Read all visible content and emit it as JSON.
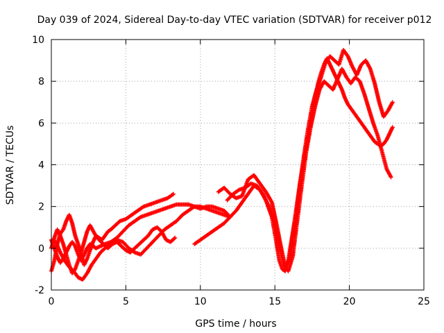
{
  "chart_data": {
    "type": "scatter",
    "title": "Day 039 of 2024, Sidereal Day-to-day VTEC variation (SDTVAR) for receiver p012",
    "xlabel": "GPS time / hours",
    "ylabel": "SDTVAR / TECUs",
    "xlim": [
      0,
      25
    ],
    "ylim": [
      -2,
      10
    ],
    "xticks": [
      0,
      5,
      10,
      15,
      20,
      25
    ],
    "yticks": [
      -2,
      0,
      2,
      4,
      6,
      8,
      10
    ],
    "grid": true,
    "marker": "+",
    "colors": {
      "series": "#ff0000",
      "grid": "#a0a0a0",
      "axis": "#000000"
    },
    "series": [
      {
        "x": [
          0.0,
          0.2,
          0.4,
          0.6,
          0.8,
          1.0,
          1.2,
          1.4,
          1.6,
          1.8,
          2.0,
          2.2,
          2.4,
          2.6,
          2.8,
          3.0,
          3.2,
          3.4,
          3.6,
          3.8,
          4.0,
          4.3,
          4.6,
          5.0,
          5.4,
          5.8,
          6.2,
          6.6,
          7.0,
          7.4,
          7.8,
          8.2
        ],
        "y": [
          -1.1,
          -0.6,
          0.2,
          0.7,
          0.9,
          1.3,
          1.6,
          1.2,
          0.6,
          0.2,
          -0.3,
          -0.8,
          -0.5,
          -0.1,
          0.3,
          0.6,
          0.5,
          0.4,
          0.6,
          0.8,
          0.9,
          1.1,
          1.3,
          1.4,
          1.6,
          1.8,
          2.0,
          2.1,
          2.2,
          2.3,
          2.4,
          2.6
        ]
      },
      {
        "x": [
          0.0,
          0.2,
          0.4,
          0.6,
          0.8,
          1.0,
          1.2,
          1.4,
          1.6,
          1.8,
          2.0,
          2.2,
          2.4,
          2.6,
          2.8,
          3.0,
          3.3,
          3.6,
          4.0,
          4.4,
          4.8,
          5.2,
          5.6,
          6.0,
          6.4,
          6.8,
          7.2,
          7.6,
          8.0,
          8.4,
          8.8,
          9.2,
          9.6,
          10.0,
          10.4,
          10.8,
          11.2,
          11.6,
          12.0
        ],
        "y": [
          0.4,
          0.0,
          -0.4,
          -0.7,
          -0.5,
          -0.2,
          0.1,
          0.3,
          0.1,
          -0.3,
          -0.6,
          -0.3,
          0.0,
          0.2,
          0.1,
          0.0,
          0.1,
          0.2,
          0.3,
          0.5,
          0.8,
          1.1,
          1.3,
          1.5,
          1.6,
          1.7,
          1.8,
          1.9,
          2.0,
          2.1,
          2.1,
          2.1,
          2.0,
          1.9,
          2.0,
          2.0,
          1.9,
          1.8,
          1.5
        ]
      },
      {
        "x": [
          0.0,
          0.2,
          0.4,
          0.6,
          0.8,
          1.0,
          1.2,
          1.4,
          1.6,
          1.8,
          2.0,
          2.2,
          2.4,
          2.6,
          2.9,
          3.2,
          3.5,
          3.8,
          4.1,
          4.4,
          4.7,
          5.0,
          5.3,
          5.6,
          5.9,
          6.2,
          6.5,
          6.8,
          7.1,
          7.4,
          7.7,
          8.0,
          8.3
        ],
        "y": [
          0.0,
          0.5,
          0.9,
          0.6,
          0.2,
          -0.3,
          -0.8,
          -1.2,
          -1.0,
          -0.6,
          -0.2,
          0.3,
          0.8,
          1.1,
          0.7,
          0.4,
          0.2,
          0.0,
          0.2,
          0.3,
          0.1,
          -0.1,
          -0.2,
          0.0,
          0.2,
          0.4,
          0.6,
          0.9,
          1.0,
          0.8,
          0.4,
          0.3,
          0.5
        ]
      },
      {
        "x": [
          0.3,
          0.6,
          0.9,
          1.2,
          1.5,
          1.8,
          2.1,
          2.4,
          2.7,
          3.0,
          3.3,
          3.6,
          4.0,
          4.4,
          4.8,
          5.2,
          5.6,
          6.0,
          6.4,
          6.8,
          7.2,
          7.6,
          8.0,
          8.4,
          8.8,
          9.2,
          9.6,
          10.0,
          10.4,
          10.8,
          11.2,
          11.6,
          12.0
        ],
        "y": [
          0.3,
          -0.2,
          -0.6,
          -0.9,
          -1.1,
          -1.4,
          -1.5,
          -1.2,
          -0.8,
          -0.5,
          -0.2,
          0.0,
          0.2,
          0.4,
          0.3,
          0.0,
          -0.2,
          -0.3,
          0.0,
          0.3,
          0.6,
          0.9,
          1.1,
          1.3,
          1.6,
          1.8,
          2.0,
          2.0,
          1.9,
          1.8,
          1.7,
          1.6,
          1.5
        ]
      },
      {
        "x": [
          9.6,
          10.0,
          10.4,
          10.8,
          11.2,
          11.6,
          12.0,
          12.4,
          12.8,
          13.2,
          13.6,
          14.0,
          14.4,
          14.8,
          15.1,
          15.3,
          15.5,
          15.7,
          15.9,
          16.1,
          16.3,
          16.5,
          16.7,
          16.9,
          17.1,
          17.3,
          17.5,
          17.7,
          17.9,
          18.1,
          18.3,
          18.5,
          18.7,
          18.9,
          19.1,
          19.3,
          19.5,
          19.7,
          19.9,
          20.1,
          20.3,
          20.5,
          20.7,
          20.9,
          21.1,
          21.3,
          21.5,
          21.7,
          21.9,
          22.1,
          22.3,
          22.5,
          22.7,
          22.9
        ],
        "y": [
          0.2,
          0.4,
          0.6,
          0.8,
          1.0,
          1.2,
          1.5,
          1.8,
          2.2,
          2.6,
          3.0,
          2.8,
          2.3,
          1.5,
          0.3,
          -0.6,
          -1.0,
          -1.1,
          -0.6,
          0.3,
          1.2,
          2.2,
          3.2,
          4.0,
          4.8,
          5.6,
          6.4,
          7.2,
          7.9,
          8.4,
          8.8,
          9.1,
          8.8,
          8.5,
          8.2,
          7.9,
          7.6,
          7.2,
          6.9,
          6.7,
          6.5,
          6.3,
          6.1,
          5.9,
          5.7,
          5.5,
          5.3,
          5.1,
          5.0,
          4.9,
          5.0,
          5.2,
          5.5,
          5.8
        ]
      },
      {
        "x": [
          11.2,
          11.6,
          12.0,
          12.4,
          12.8,
          13.2,
          13.6,
          14.0,
          14.4,
          14.8,
          15.1,
          15.4,
          15.7,
          16.0,
          16.3,
          16.6,
          16.9,
          17.2,
          17.5,
          17.8,
          18.1,
          18.4,
          18.7,
          19.0,
          19.3,
          19.6,
          19.9,
          20.2,
          20.5,
          20.8,
          21.1,
          21.4,
          21.7,
          22.0,
          22.3,
          22.6,
          22.9
        ],
        "y": [
          2.7,
          2.9,
          2.6,
          2.4,
          2.5,
          3.3,
          3.5,
          3.1,
          2.7,
          2.2,
          1.2,
          0.1,
          -0.9,
          -0.5,
          1.0,
          2.6,
          4.2,
          5.6,
          6.8,
          7.6,
          8.2,
          8.9,
          9.2,
          9.0,
          8.8,
          9.5,
          9.2,
          8.7,
          8.3,
          8.8,
          9.0,
          8.6,
          7.9,
          7.0,
          6.3,
          6.6,
          7.0
        ]
      },
      {
        "x": [
          11.8,
          12.2,
          12.6,
          13.0,
          13.4,
          13.8,
          14.2,
          14.6,
          15.0,
          15.3,
          15.6,
          15.9,
          16.2,
          16.5,
          16.8,
          17.1,
          17.4,
          17.7,
          18.0,
          18.3,
          18.6,
          18.9,
          19.2,
          19.5,
          19.8,
          20.1,
          20.4,
          20.7,
          21.0,
          21.3,
          21.6,
          21.9,
          22.2,
          22.5,
          22.8
        ],
        "y": [
          2.3,
          2.6,
          2.8,
          2.9,
          3.1,
          3.0,
          2.6,
          2.0,
          1.2,
          0.2,
          -0.8,
          -1.1,
          -0.4,
          1.3,
          3.0,
          4.6,
          5.8,
          6.8,
          7.6,
          8.0,
          7.8,
          7.6,
          8.1,
          8.6,
          8.2,
          7.9,
          8.2,
          8.0,
          7.4,
          6.7,
          6.0,
          5.4,
          4.6,
          3.8,
          3.4
        ]
      }
    ]
  }
}
